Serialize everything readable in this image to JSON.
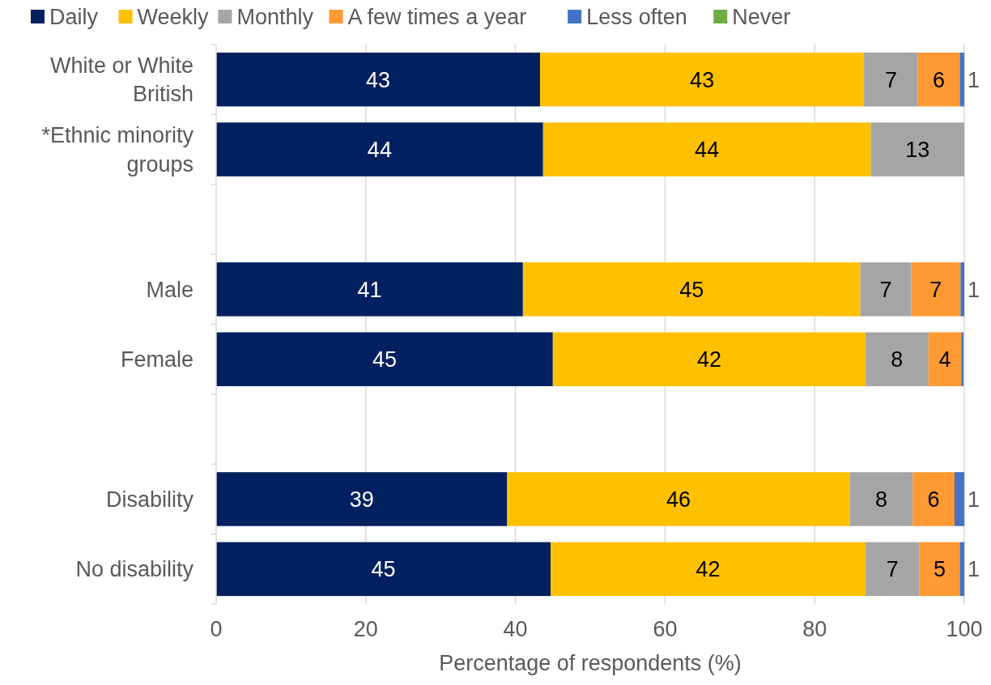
{
  "chart_data": {
    "type": "bar",
    "orientation": "horizontal",
    "stacked": true,
    "xlabel": "Percentage of respondents (%)",
    "categories": [
      "White or White British",
      "*Ethnic minority groups",
      null,
      "Male",
      "Female",
      null,
      "Disability",
      "No disability"
    ],
    "xlim": [
      0,
      100
    ],
    "xticks": [
      0,
      20,
      40,
      60,
      80,
      100
    ],
    "grid": "x",
    "legend": "top",
    "series": [
      {
        "name": "Daily",
        "color": "#002060",
        "values": [
          43.3,
          43.7,
          null,
          41.0,
          45.0,
          null,
          38.9,
          44.7
        ],
        "value_labels": [
          "43",
          "44",
          null,
          "41",
          "45",
          null,
          "39",
          "45"
        ]
      },
      {
        "name": "Weekly",
        "color": "#ffc000",
        "values": [
          43.3,
          43.8,
          null,
          45.1,
          41.8,
          null,
          45.8,
          42.1
        ],
        "value_labels": [
          "43",
          "44",
          null,
          "45",
          "42",
          null,
          "46",
          "42"
        ]
      },
      {
        "name": "Monthly",
        "color": "#a5a5a5",
        "values": [
          7.2,
          12.5,
          null,
          6.8,
          8.4,
          null,
          8.4,
          7.2
        ],
        "value_labels": [
          "7",
          "13",
          null,
          "7",
          "8",
          null,
          "8",
          "7"
        ]
      },
      {
        "name": "A few times a year",
        "color": "#ff9933",
        "values": [
          5.6,
          0,
          null,
          6.6,
          4.4,
          null,
          5.6,
          5.4
        ],
        "value_labels": [
          "6",
          null,
          null,
          "7",
          "4",
          null,
          "6",
          "5"
        ]
      },
      {
        "name": "Less often",
        "color": "#4472c4",
        "values": [
          0.6,
          0,
          null,
          0.5,
          0.3,
          null,
          1.3,
          0.6
        ],
        "value_labels": [
          "1",
          null,
          null,
          "1",
          null,
          null,
          "1",
          "1"
        ]
      },
      {
        "name": "Never",
        "color": "#70ad47",
        "values": [
          0,
          0,
          null,
          0,
          0,
          null,
          0,
          0
        ]
      }
    ]
  }
}
